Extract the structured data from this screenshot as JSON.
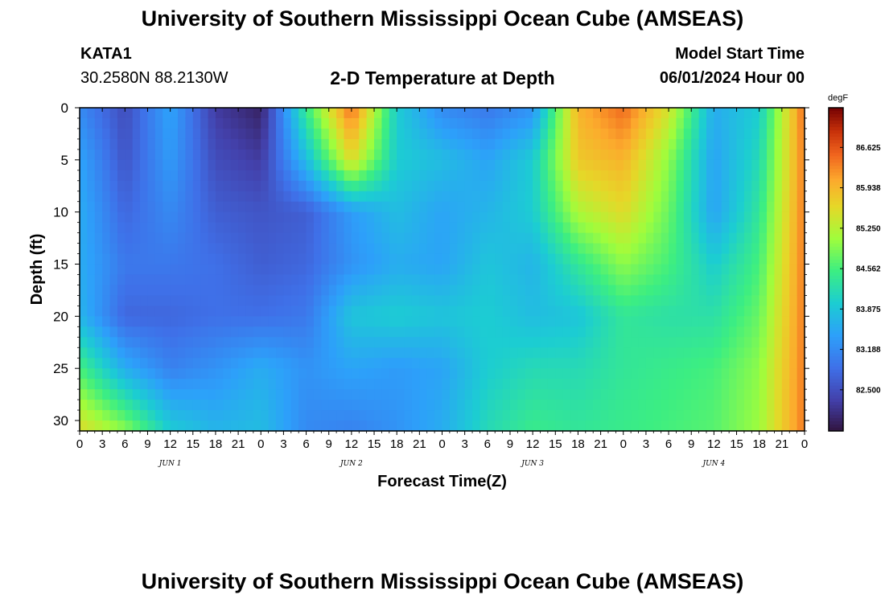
{
  "page": {
    "title_top": "University of Southern Mississippi Ocean Cube (AMSEAS)",
    "title_bottom": "University of Southern Mississippi Ocean Cube (AMSEAS)",
    "station_id": "KATA1",
    "station_coords": "30.2580N  88.2130W",
    "plot_title": "2-D Temperature at Depth",
    "model_start_label": "Model Start Time",
    "model_start_value": "06/01/2024 Hour 00"
  },
  "chart_data": {
    "type": "heatmap",
    "title": "2-D Temperature at Depth",
    "xlabel": "Forecast Time(Z)",
    "ylabel": "Depth (ft)",
    "xlim": [
      0,
      96
    ],
    "ylim": [
      0,
      31
    ],
    "y_inverted": true,
    "x_tick_labels": [
      "0",
      "3",
      "6",
      "9",
      "12",
      "15",
      "18",
      "21",
      "0",
      "3",
      "6",
      "9",
      "12",
      "15",
      "18",
      "21",
      "0",
      "3",
      "6",
      "9",
      "12",
      "15",
      "18",
      "21",
      "0",
      "3",
      "6",
      "9",
      "12",
      "15",
      "18",
      "21",
      "0"
    ],
    "x_date_labels": [
      {
        "label": "JUN 1",
        "hour": 12
      },
      {
        "label": "JUN 2",
        "hour": 36
      },
      {
        "label": "JUN 3",
        "hour": 60
      },
      {
        "label": "JUN 4",
        "hour": 84
      }
    ],
    "y_ticks": [
      0,
      5,
      10,
      15,
      20,
      25,
      30
    ],
    "colorbar": {
      "unit": "degF",
      "min": 81.8,
      "max": 87.3,
      "tick_values": [
        86.625,
        85.938,
        85.25,
        84.562,
        83.875,
        83.188,
        82.5
      ],
      "tick_labels": [
        "86.625",
        "85.938",
        "85.250",
        "84.562",
        "83.875",
        "83.188",
        "82.500"
      ]
    },
    "grid_hours": [
      0,
      6,
      12,
      18,
      24,
      30,
      36,
      42,
      48,
      54,
      60,
      66,
      72,
      78,
      84,
      90,
      96
    ],
    "grid_depths": [
      0,
      5,
      10,
      15,
      20,
      25,
      31
    ],
    "values": [
      [
        83.2,
        82.5,
        83.5,
        82.3,
        82.0,
        84.5,
        86.5,
        84.0,
        83.2,
        83.0,
        83.3,
        86.0,
        86.5,
        85.5,
        83.6,
        84.0,
        86.5
      ],
      [
        83.5,
        82.6,
        83.4,
        82.5,
        82.3,
        83.8,
        85.6,
        84.0,
        83.8,
        83.5,
        84.0,
        85.8,
        86.0,
        85.0,
        83.5,
        84.2,
        86.4
      ],
      [
        83.6,
        82.8,
        83.2,
        82.7,
        82.6,
        82.7,
        83.4,
        83.8,
        83.5,
        83.7,
        84.0,
        85.2,
        85.6,
        84.8,
        83.5,
        84.4,
        86.4
      ],
      [
        83.6,
        83.0,
        83.0,
        82.9,
        82.7,
        82.8,
        83.3,
        83.6,
        83.5,
        83.9,
        83.7,
        84.4,
        85.0,
        84.6,
        84.0,
        84.6,
        86.4
      ],
      [
        83.7,
        82.8,
        82.8,
        82.9,
        82.9,
        83.0,
        83.9,
        84.0,
        83.9,
        84.0,
        83.8,
        83.9,
        84.4,
        84.3,
        84.3,
        84.8,
        86.4
      ],
      [
        84.6,
        83.6,
        83.1,
        83.3,
        83.6,
        83.3,
        83.5,
        83.4,
        83.5,
        84.0,
        84.2,
        84.2,
        84.4,
        84.5,
        84.6,
        85.0,
        86.4
      ],
      [
        85.6,
        85.0,
        84.0,
        83.7,
        83.8,
        83.2,
        83.1,
        83.3,
        83.6,
        84.2,
        84.5,
        84.4,
        84.5,
        84.6,
        84.7,
        85.1,
        86.4
      ]
    ]
  }
}
